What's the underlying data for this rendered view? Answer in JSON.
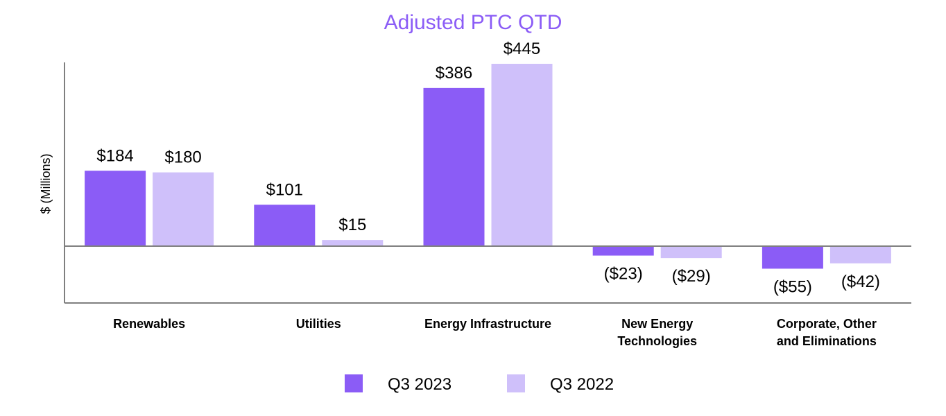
{
  "chart_data": {
    "type": "bar",
    "title": "Adjusted PTC QTD",
    "xlabel": "",
    "ylabel": "$ (Millions)",
    "ylim": [
      -90,
      500
    ],
    "grid": false,
    "legend_position": "bottom-center",
    "categories": [
      [
        "Renewables"
      ],
      [
        "Utilities"
      ],
      [
        "Energy Infrastructure"
      ],
      [
        "New Energy",
        "Technologies"
      ],
      [
        "Corporate, Other",
        "and Eliminations"
      ]
    ],
    "series": [
      {
        "name": "Q3 2023",
        "color": "#8b5cf6",
        "values": [
          184,
          101,
          386,
          -23,
          -55
        ],
        "labels": [
          "$184",
          "$101",
          "$386",
          "($23)",
          "($55)"
        ]
      },
      {
        "name": "Q3 2022",
        "color": "#cfc0fa",
        "values": [
          180,
          15,
          445,
          -29,
          -42
        ],
        "labels": [
          "$180",
          "$15",
          "$445",
          "($29)",
          "($42)"
        ]
      }
    ],
    "colors": {
      "title": "#8b5cf6",
      "axis": "#7f7f7f"
    }
  }
}
